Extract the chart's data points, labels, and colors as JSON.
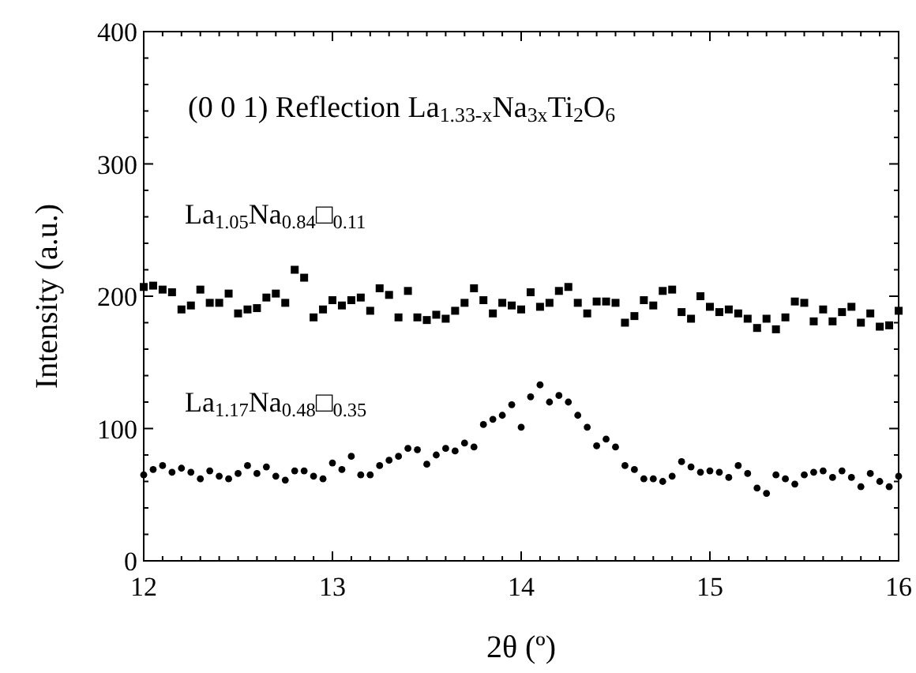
{
  "chart_data": {
    "type": "scatter",
    "xlabel": "2θ (º)",
    "ylabel": "Intensity (a.u.)",
    "annotations": [
      "(0 0 1) Reflection La$_{1.33-x}$Na$_{3x}$Ti$_{2}$O$_{6}$"
    ],
    "x": [
      12.0,
      12.05,
      12.1,
      12.15,
      12.2,
      12.25,
      12.3,
      12.35,
      12.4,
      12.45,
      12.5,
      12.55,
      12.6,
      12.65,
      12.7,
      12.75,
      12.8,
      12.85,
      12.9,
      12.95,
      13.0,
      13.05,
      13.1,
      13.15,
      13.2,
      13.25,
      13.3,
      13.35,
      13.4,
      13.45,
      13.5,
      13.55,
      13.6,
      13.65,
      13.7,
      13.75,
      13.8,
      13.85,
      13.9,
      13.95,
      14.0,
      14.05,
      14.1,
      14.15,
      14.2,
      14.25,
      14.3,
      14.35,
      14.4,
      14.45,
      14.5,
      14.55,
      14.6,
      14.65,
      14.7,
      14.75,
      14.8,
      14.85,
      14.9,
      14.95,
      15.0,
      15.05,
      15.1,
      15.15,
      15.2,
      15.25,
      15.3,
      15.35,
      15.4,
      15.45,
      15.5,
      15.55,
      15.6,
      15.65,
      15.7,
      15.75,
      15.8,
      15.85,
      15.9,
      15.95,
      16.0
    ],
    "series": [
      {
        "name": "La$_{1.05}$Na$_{0.84}$□$_{0.11}$",
        "color": "#000000",
        "marker": "square",
        "values": [
          207,
          208,
          205,
          203,
          190,
          193,
          205,
          195,
          195,
          202,
          187,
          190,
          191,
          199,
          202,
          195,
          220,
          214,
          184,
          190,
          197,
          193,
          197,
          199,
          189,
          206,
          201,
          184,
          204,
          184,
          182,
          186,
          183,
          189,
          195,
          206,
          197,
          187,
          195,
          193,
          190,
          203,
          192,
          195,
          204,
          207,
          195,
          187,
          196,
          196,
          195,
          180,
          185,
          197,
          193,
          204,
          205,
          188,
          183,
          200,
          192,
          188,
          190,
          187,
          183,
          176,
          183,
          175,
          184,
          196,
          195,
          181,
          190,
          181,
          188,
          192,
          180,
          187,
          177,
          178,
          189
        ]
      },
      {
        "name": "La$_{1.17}$Na$_{0.48}$□$_{0.35}$",
        "color": "#000000",
        "marker": "circle",
        "values": [
          65,
          69,
          72,
          67,
          70,
          67,
          62,
          68,
          64,
          62,
          66,
          72,
          66,
          71,
          64,
          61,
          68,
          68,
          64,
          62,
          74,
          69,
          79,
          65,
          65,
          72,
          76,
          79,
          85,
          84,
          73,
          80,
          85,
          83,
          89,
          86,
          103,
          107,
          110,
          118,
          101,
          124,
          133,
          120,
          125,
          120,
          110,
          101,
          87,
          92,
          86,
          72,
          69,
          62,
          62,
          60,
          64,
          75,
          71,
          67,
          68,
          67,
          63,
          72,
          66,
          55,
          51,
          65,
          62,
          58,
          65,
          67,
          68,
          63,
          68,
          63,
          56,
          66,
          60,
          56,
          64
        ]
      }
    ],
    "xlim": [
      12,
      16
    ],
    "xticks": [
      12,
      {
        "value": 12.1,
        "label": null
      },
      {
        "value": 12.2,
        "label": null
      },
      {
        "value": 12.3,
        "label": null
      },
      {
        "value": 12.4,
        "label": null
      },
      {
        "value": 12.5,
        "label": null
      },
      {
        "value": 12.6,
        "label": null
      },
      {
        "value": 12.7,
        "label": null
      },
      {
        "value": 12.8,
        "label": null
      },
      {
        "value": 12.9,
        "label": null
      },
      13,
      {
        "value": 13.1,
        "label": null
      },
      {
        "value": 13.2,
        "label": null
      },
      {
        "value": 13.3,
        "label": null
      },
      {
        "value": 13.4,
        "label": null
      },
      {
        "value": 13.5,
        "label": null
      },
      {
        "value": 13.6,
        "label": null
      },
      {
        "value": 13.7,
        "label": null
      },
      {
        "value": 13.8,
        "label": null
      },
      {
        "value": 13.9,
        "label": null
      },
      14,
      {
        "value": 14.1,
        "label": null
      },
      {
        "value": 14.2,
        "label": null
      },
      {
        "value": 14.3,
        "label": null
      },
      {
        "value": 14.4,
        "label": null
      },
      {
        "value": 14.5,
        "label": null
      },
      {
        "value": 14.6,
        "label": null
      },
      {
        "value": 14.7,
        "label": null
      },
      {
        "value": 14.8,
        "label": null
      },
      {
        "value": 14.9,
        "label": null
      },
      15,
      {
        "value": 15.1,
        "label": null
      },
      {
        "value": 15.2,
        "label": null
      },
      {
        "value": 15.3,
        "label": null
      },
      {
        "value": 15.4,
        "label": null
      },
      {
        "value": 15.5,
        "label": null
      },
      {
        "value": 15.6,
        "label": null
      },
      {
        "value": 15.7,
        "label": null
      },
      {
        "value": 15.8,
        "label": null
      },
      {
        "value": 15.9,
        "label": null
      },
      16
    ],
    "ylim": [
      0,
      400
    ],
    "yticks": [
      0,
      {
        "value": 20,
        "label": null
      },
      {
        "value": 40,
        "label": null
      },
      {
        "value": 60,
        "label": null
      },
      {
        "value": 80,
        "label": null
      },
      100,
      {
        "value": 120,
        "label": null
      },
      {
        "value": 140,
        "label": null
      },
      {
        "value": 160,
        "label": null
      },
      {
        "value": 180,
        "label": null
      },
      200,
      {
        "value": 220,
        "label": null
      },
      {
        "value": 240,
        "label": null
      },
      {
        "value": 260,
        "label": null
      },
      {
        "value": 280,
        "label": null
      },
      300,
      {
        "value": 320,
        "label": null
      },
      {
        "value": 340,
        "label": null
      },
      {
        "value": 360,
        "label": null
      },
      {
        "value": 380,
        "label": null
      },
      400
    ],
    "grid": false
  }
}
